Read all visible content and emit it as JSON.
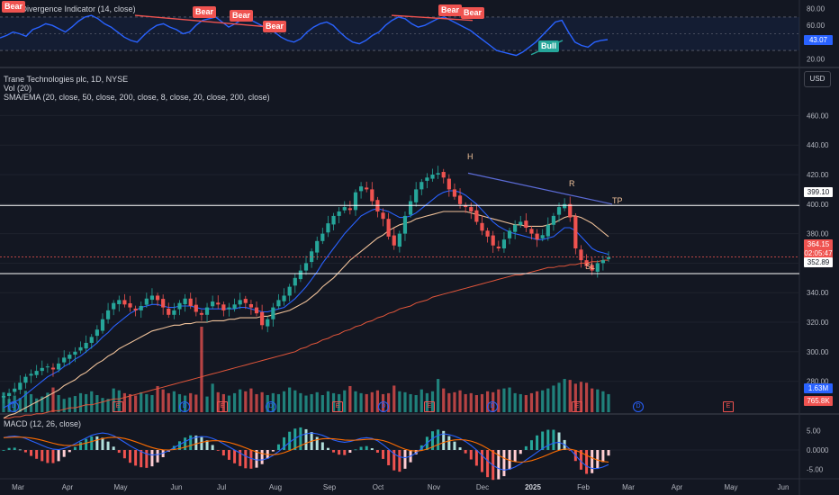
{
  "rsi": {
    "title": "RSI Divergence Indicator (14, close)",
    "ticks": [
      "80.00",
      "60.00",
      "40.00",
      "20.00"
    ],
    "current": "43.07",
    "labels": [
      {
        "text": "Bear",
        "type": "bear"
      },
      {
        "text": "Bear",
        "type": "bear"
      },
      {
        "text": "Bear",
        "type": "bear"
      },
      {
        "text": "Bear",
        "type": "bear"
      },
      {
        "text": "Bear",
        "type": "bear"
      },
      {
        "text": "Bear",
        "type": "bear"
      },
      {
        "text": "Bull",
        "type": "bull"
      }
    ],
    "values": [
      45,
      48,
      52,
      50,
      47,
      55,
      58,
      62,
      60,
      56,
      52,
      58,
      65,
      70,
      72,
      68,
      62,
      58,
      52,
      46,
      42,
      40,
      48,
      55,
      60,
      62,
      58,
      55,
      50,
      52,
      60,
      66,
      68,
      70,
      64,
      58,
      62,
      67,
      68,
      64,
      60,
      56,
      52,
      46,
      42,
      40,
      44,
      52,
      58,
      62,
      64,
      60,
      52,
      45,
      40,
      38,
      42,
      48,
      52,
      60,
      66,
      70,
      68,
      62,
      58,
      60,
      64,
      68,
      70,
      66,
      62,
      58,
      54,
      48,
      42,
      36,
      30,
      28,
      26,
      24,
      28,
      34,
      40,
      48,
      56,
      64,
      66,
      52,
      40,
      36,
      34,
      40,
      42,
      43
    ]
  },
  "main": {
    "symbol_line": "Trane Technologies plc, 1D, NYSE",
    "vol_line": "Vol (20)",
    "ma_line": "SMA/EMA (20, close, 50, close, 200, close, 8, close, 20, close, 200, close)",
    "currency": "USD",
    "price_ticks": [
      "460.00",
      "440.00",
      "420.00",
      "400.00",
      "380.00",
      "360.00",
      "340.00",
      "320.00",
      "300.00",
      "280.00"
    ],
    "tp_price": "399.10",
    "sl_price": "352.89",
    "last_price": "364.15",
    "countdown": "02:05:47",
    "vol_label_1": "1.63M",
    "vol_label_2": "765.8K",
    "annotations": {
      "head": "H",
      "right": "R",
      "tp": "TP",
      "sl": "SL"
    },
    "colors": {
      "up": "#26a69a",
      "down": "#ef5350",
      "sma20": "#2962ff",
      "sma50": "#f0c29a",
      "sma200": "#e0553a",
      "tp_line": "#ffffff",
      "last_line": "#ef5350"
    }
  },
  "chart_data": {
    "type": "candlestick",
    "ylim": [
      270,
      470
    ],
    "close": [
      270,
      272,
      275,
      279,
      283,
      285,
      287,
      289,
      290,
      288,
      292,
      296,
      298,
      300,
      303,
      306,
      310,
      315,
      322,
      328,
      333,
      335,
      332,
      330,
      328,
      331,
      336,
      338,
      335,
      330,
      325,
      328,
      333,
      336,
      331,
      327,
      325,
      330,
      334,
      332,
      328,
      330,
      332,
      335,
      333,
      330,
      326,
      318,
      322,
      330,
      335,
      338,
      344,
      350,
      355,
      360,
      368,
      375,
      380,
      387,
      392,
      395,
      398,
      396,
      408,
      412,
      410,
      402,
      395,
      390,
      378,
      372,
      380,
      392,
      402,
      410,
      415,
      418,
      420,
      421,
      418,
      410,
      405,
      400,
      398,
      395,
      388,
      382,
      378,
      372,
      370,
      376,
      382,
      386,
      388,
      384,
      380,
      376,
      379,
      386,
      392,
      398,
      400,
      391,
      370,
      362,
      358,
      355,
      360,
      362,
      364
    ],
    "sma20": [
      262,
      264,
      266,
      268,
      271,
      274,
      277,
      280,
      283,
      285,
      287,
      290,
      292,
      295,
      297,
      300,
      303,
      306,
      310,
      313,
      317,
      320,
      323,
      326,
      328,
      330,
      331,
      332,
      332,
      331,
      330,
      330,
      331,
      331,
      331,
      330,
      329,
      329,
      329,
      329,
      329,
      329,
      329,
      330,
      330,
      329,
      328,
      327,
      327,
      328,
      329,
      330,
      333,
      336,
      340,
      344,
      349,
      354,
      360,
      365,
      370,
      375,
      380,
      384,
      388,
      392,
      394,
      396,
      397,
      396,
      395,
      393,
      391,
      391,
      392,
      394,
      397,
      400,
      403,
      406,
      408,
      409,
      409,
      408,
      406,
      403,
      400,
      396,
      392,
      388,
      385,
      383,
      381,
      380,
      379,
      378,
      377,
      376,
      376,
      377,
      378,
      381,
      384,
      384,
      382,
      378,
      374,
      370,
      368,
      367,
      366
    ],
    "sma50": [
      255,
      257,
      258,
      260,
      262,
      264,
      266,
      268,
      270,
      272,
      274,
      277,
      279,
      281,
      284,
      286,
      289,
      292,
      294,
      297,
      299,
      302,
      304,
      306,
      308,
      310,
      312,
      314,
      315,
      316,
      317,
      318,
      318,
      319,
      319,
      320,
      320,
      320,
      321,
      321,
      321,
      322,
      322,
      323,
      323,
      323,
      323,
      324,
      324,
      325,
      326,
      327,
      328,
      330,
      332,
      334,
      337,
      340,
      344,
      347,
      350,
      354,
      358,
      362,
      365,
      368,
      371,
      374,
      377,
      379,
      382,
      384,
      386,
      387,
      388,
      390,
      391,
      392,
      393,
      394,
      395,
      395,
      395,
      395,
      395,
      394,
      393,
      392,
      391,
      390,
      389,
      388,
      387,
      386,
      386,
      385,
      385,
      385,
      385,
      386,
      387,
      389,
      391,
      392,
      392,
      391,
      389,
      387,
      384,
      381,
      378
    ],
    "sma200": [
      255,
      255,
      256,
      256,
      257,
      257,
      258,
      258,
      259,
      260,
      260,
      261,
      262,
      262,
      263,
      264,
      264,
      265,
      266,
      267,
      268,
      268,
      269,
      270,
      271,
      272,
      273,
      274,
      275,
      276,
      277,
      278,
      279,
      280,
      281,
      282,
      283,
      284,
      285,
      286,
      287,
      288,
      289,
      290,
      291,
      292,
      293,
      294,
      295,
      296,
      297,
      298,
      299,
      300,
      302,
      303,
      305,
      306,
      308,
      309,
      311,
      312,
      314,
      315,
      317,
      318,
      320,
      321,
      323,
      324,
      326,
      327,
      329,
      330,
      331,
      333,
      334,
      335,
      337,
      338,
      339,
      340,
      341,
      342,
      343,
      344,
      345,
      346,
      347,
      348,
      349,
      350,
      351,
      352,
      352,
      353,
      354,
      355,
      356,
      357,
      357,
      358,
      358,
      359,
      359,
      360,
      360,
      361,
      361,
      362,
      362
    ],
    "volume": [
      42,
      28,
      35,
      30,
      45,
      38,
      29,
      33,
      41,
      52,
      36,
      28,
      31,
      34,
      40,
      38,
      44,
      36,
      30,
      28,
      50,
      46,
      40,
      38,
      35,
      42,
      38,
      36,
      55,
      48,
      40,
      44,
      38,
      35,
      40,
      37,
      180,
      33,
      60,
      42,
      38,
      35,
      40,
      48,
      44,
      50,
      38,
      42,
      36,
      40,
      38,
      44,
      52,
      46,
      40,
      35,
      38,
      42,
      36,
      44,
      40,
      38,
      46,
      55,
      44,
      40,
      38,
      42,
      46,
      38,
      40,
      56,
      44,
      42,
      38,
      36,
      48,
      40,
      44,
      70,
      50,
      40,
      42,
      46,
      38,
      40,
      36,
      38,
      44,
      42,
      48,
      50,
      52,
      40,
      38,
      36,
      40,
      44,
      46,
      50,
      56,
      62,
      70,
      68,
      60,
      64,
      62,
      50,
      48,
      44,
      38
    ],
    "macd": [
      3.2,
      3.5,
      3.6,
      3.4,
      3.0,
      2.4,
      1.8,
      1.2,
      0.6,
      0.2,
      0.1,
      0.4,
      0.9,
      1.6,
      2.4,
      3.1,
      3.8,
      4.2,
      4.4,
      4.2,
      3.7,
      2.9,
      2.0,
      1.1,
      0.3,
      -0.4,
      -1.0,
      -1.3,
      -1.2,
      -0.8,
      -0.2,
      0.6,
      1.4,
      2.2,
      2.9,
      3.3,
      3.5,
      3.4,
      3.0,
      2.4,
      1.6,
      0.8,
      0.0,
      -0.8,
      -1.6,
      -2.2,
      -2.6,
      -2.6,
      -2.2,
      -1.4,
      -0.4,
      0.8,
      2.0,
      3.0,
      3.8,
      4.2,
      4.4,
      4.2,
      3.8,
      3.2,
      2.6,
      2.2,
      2.0,
      2.2,
      2.6,
      3.0,
      3.2,
      3.0,
      2.4,
      1.4,
      0.2,
      -1.0,
      -1.8,
      -2.0,
      -1.6,
      -0.8,
      0.4,
      1.8,
      3.0,
      3.8,
      4.2,
      4.0,
      3.6,
      3.0,
      2.2,
      1.2,
      0.0,
      -1.4,
      -2.8,
      -4.0,
      -4.8,
      -5.2,
      -5.0,
      -4.4,
      -3.6,
      -2.6,
      -1.6,
      -0.6,
      0.4,
      1.2,
      1.8,
      2.0,
      1.4,
      0.2,
      -1.4,
      -3.0,
      -4.2,
      -4.8,
      -4.8,
      -4.4,
      -3.8
    ],
    "macd_ticks": [
      "5.00",
      "0.0000",
      "-5.00"
    ],
    "x_labels": [
      "Mar",
      "Apr",
      "May",
      "Jun",
      "Jul",
      "Aug",
      "Sep",
      "Oct",
      "Nov",
      "Dec",
      "2025",
      "Feb",
      "Mar",
      "Apr",
      "May",
      "Jun"
    ]
  },
  "macd_title": "MACD (12, 26, close)",
  "events": [
    {
      "type": "D",
      "color": "#2962ff"
    },
    {
      "type": "E",
      "color": "#ef5350"
    },
    {
      "type": "D",
      "color": "#2962ff"
    },
    {
      "type": "E",
      "color": "#ef5350"
    },
    {
      "type": "D",
      "color": "#2962ff"
    },
    {
      "type": "E",
      "color": "#ef5350"
    },
    {
      "type": "D",
      "color": "#2962ff"
    },
    {
      "type": "E",
      "color": "#ef5350"
    },
    {
      "type": "D",
      "color": "#2962ff"
    },
    {
      "type": "E",
      "color": "#ef5350"
    },
    {
      "type": "D",
      "color": "#2962ff"
    },
    {
      "type": "E",
      "color": "#ef5350"
    }
  ]
}
